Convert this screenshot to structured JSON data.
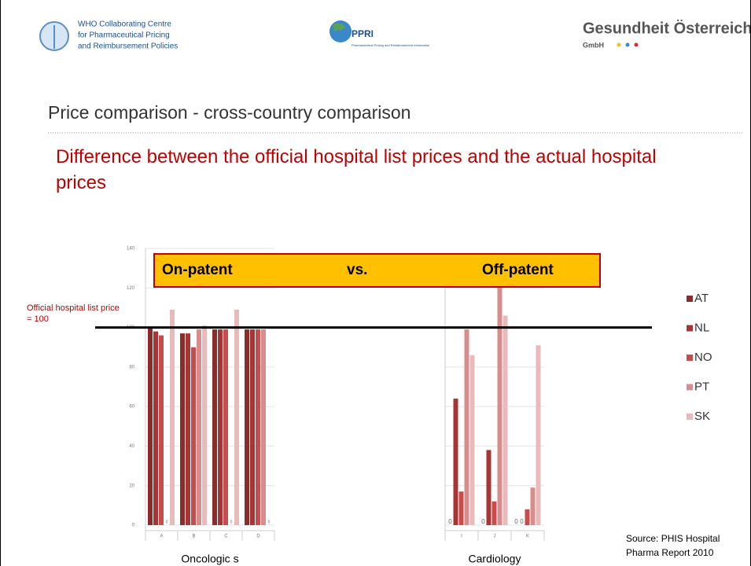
{
  "header": {
    "who_lines": [
      "WHO Collaborating Centre",
      "for Pharmaceutical Pricing",
      "and Reimbursement Policies"
    ],
    "ppri": "PPRI",
    "ppri_sub": "Pharmaceutical Pricing and Reimbursement Information",
    "goeg": "Gesundheit Österreich",
    "goeg_sub": "GmbH"
  },
  "title": "Price comparison - cross-country comparison",
  "heading": "Difference between the official hospital list prices and the actual hospital prices",
  "chart_data": {
    "type": "bar",
    "banner": [
      "On-patent",
      "vs.",
      "Off-patent"
    ],
    "annotation": "Official hospital list price = 100",
    "reference": 100,
    "groups": [
      {
        "label": "Oncologic s",
        "categories": [
          "A",
          "B",
          "C",
          "D"
        ]
      },
      {
        "label": "Cardiology",
        "categories": [
          "I",
          "J",
          "K"
        ]
      }
    ],
    "series": [
      {
        "name": "AT",
        "color": "#8b2b2b",
        "values": [
          100,
          97,
          99,
          99,
          0,
          0,
          0
        ]
      },
      {
        "name": "NL",
        "color": "#a83434",
        "values": [
          98,
          97,
          99,
          99,
          64,
          38,
          0
        ]
      },
      {
        "name": "NO",
        "color": "#c44d4d",
        "values": [
          96,
          90,
          99,
          99,
          17,
          12,
          8
        ]
      },
      {
        "name": "PT",
        "color": "#d98c8c",
        "values": [
          0,
          99,
          0,
          99,
          99,
          122,
          19
        ]
      },
      {
        "name": "SK",
        "color": "#e9baba",
        "values": [
          109,
          101,
          109,
          0,
          86,
          106,
          91
        ]
      }
    ],
    "ylim": [
      0,
      140
    ],
    "yticks": [
      0,
      20,
      40,
      60,
      80,
      100,
      120,
      140
    ],
    "grid": true,
    "source": "Source: PHIS Hospital Pharma Report 2010"
  }
}
